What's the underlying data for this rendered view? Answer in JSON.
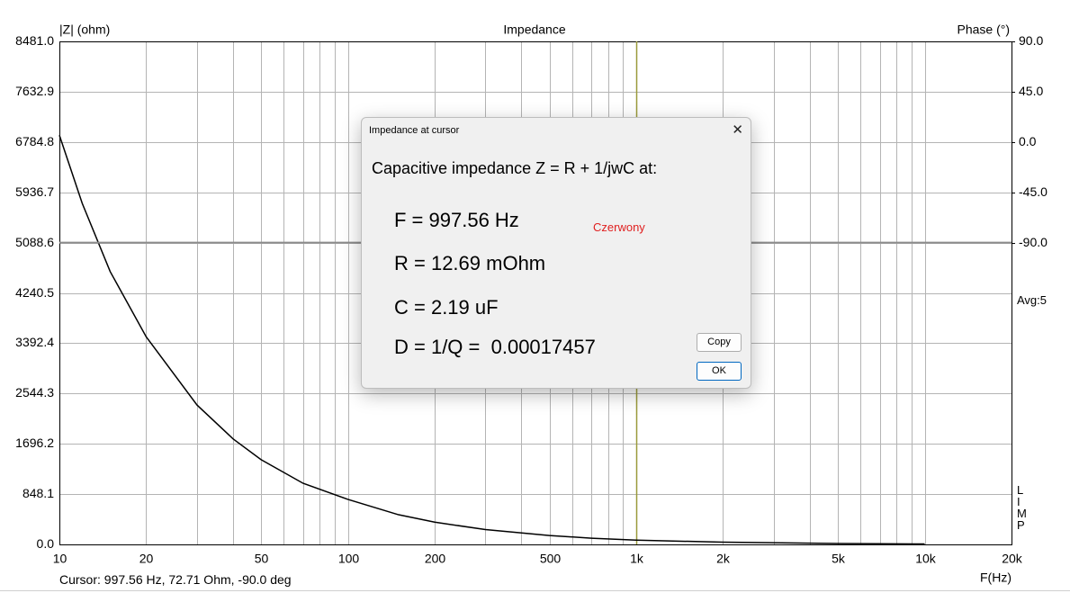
{
  "chart_data": {
    "type": "line",
    "title": "Impedance",
    "ylabel": "|Z| (ohm)",
    "y2label": "Phase (°)",
    "xlabel": "F(Hz)",
    "xscale": "log",
    "grid": true,
    "xlim": [
      10,
      20000
    ],
    "xticks": [
      10,
      20,
      50,
      100,
      200,
      500,
      {
        "value": 1000,
        "label": "1k"
      },
      {
        "value": 2000,
        "label": "2k"
      },
      {
        "value": 5000,
        "label": "5k"
      },
      {
        "value": 10000,
        "label": "10k"
      },
      {
        "value": 20000,
        "label": "20k"
      }
    ],
    "xminorticks": [
      30,
      40,
      60,
      70,
      80,
      90,
      300,
      400,
      600,
      700,
      800,
      900,
      3000,
      4000,
      6000,
      7000,
      8000,
      9000
    ],
    "ylim": [
      0,
      8481
    ],
    "yticks": [
      {
        "value": 0,
        "label": "0.0"
      },
      848.1,
      1696.2,
      2544.3,
      3392.4,
      4240.5,
      5088.6,
      5936.7,
      6784.8,
      7632.9,
      {
        "value": 8481,
        "label": "8481.0"
      }
    ],
    "y2lim": [
      -360,
      90
    ],
    "y2ticks": [
      {
        "value": 90,
        "label": "90.0"
      },
      {
        "value": 45,
        "label": "45.0"
      },
      {
        "value": 0,
        "label": "0.0"
      },
      {
        "value": -45,
        "label": "-45.0"
      },
      {
        "value": -90,
        "label": "-90.0"
      }
    ],
    "cursor_x": 997.56,
    "cursor_color": "#9a9a3a",
    "series": [
      {
        "name": "|Z|",
        "color": "#000000",
        "x": [
          10,
          12,
          15,
          20,
          30,
          40,
          50,
          70,
          100,
          150,
          200,
          300,
          500,
          700,
          1000,
          2000,
          5000,
          10000
        ],
        "values": [
          6900,
          5750,
          4600,
          3500,
          2350,
          1780,
          1430,
          1030,
          760,
          500,
          375,
          250,
          150,
          105,
          73,
          37,
          15,
          7
        ]
      },
      {
        "name": "Phase",
        "color": "#8c8c8c",
        "axis": "y2",
        "x": [
          10,
          20000
        ],
        "values": [
          -90,
          -90
        ]
      }
    ]
  },
  "side_labels": {
    "average": "Avg:5",
    "app": "LIMP"
  },
  "status": {
    "cursor": "Cursor: 997.56 Hz, 72.71 Ohm, -90.0 deg"
  },
  "dialog": {
    "title": "Impedance at cursor",
    "heading": "Capacitive impedance Z = R + 1/jwC at:",
    "lines": [
      "F = 997.56 Hz",
      "R = 12.69 mOhm",
      "C = 2.19 uF",
      "D = 1/Q =  0.00017457"
    ],
    "channel": "Czerwony",
    "buttons": [
      "Copy",
      "OK"
    ],
    "close": "✕"
  }
}
